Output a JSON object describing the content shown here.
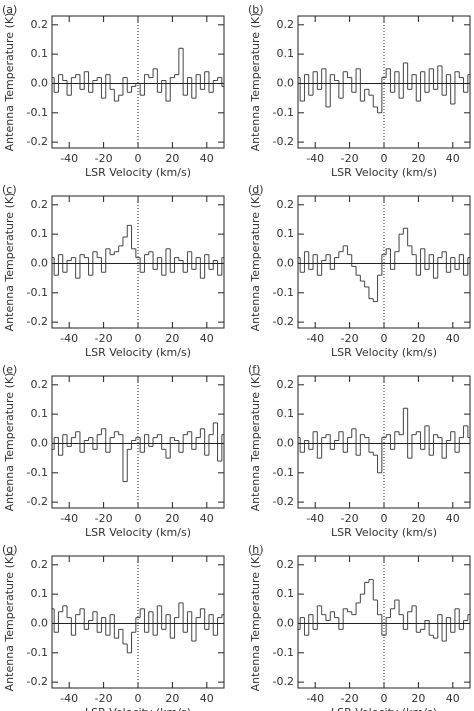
{
  "chart_data": [
    {
      "type": "line",
      "drawstyle": "steps-mid",
      "title": "(a)",
      "x_label": "LSR Velocity (km/s)",
      "y_label": "Antenna Temperature (K)",
      "color": "#444444",
      "xlim": [
        -50,
        50
      ],
      "ylim": [
        -0.22,
        0.23
      ],
      "xticks": [
        -40,
        -20,
        0,
        20,
        40
      ],
      "yticks": [
        -0.2,
        -0.1,
        {
          "value": 0,
          "label": "0.0"
        },
        0.1,
        0.2
      ],
      "x": [
        -50,
        -47.5,
        -45,
        -42.5,
        -40,
        -37.5,
        -35,
        -32.5,
        -30,
        -27.5,
        -25,
        -22.5,
        -20,
        -17.5,
        -15,
        -12.5,
        -10,
        -7.5,
        -5,
        -2.5,
        0,
        2.5,
        5,
        7.5,
        10,
        12.5,
        15,
        17.5,
        20,
        22.5,
        25,
        27.5,
        30,
        32.5,
        35,
        37.5,
        40,
        42.5,
        45,
        47.5,
        50
      ],
      "values": [
        0.02,
        -0.03,
        0.03,
        0.01,
        -0.04,
        0.02,
        0.03,
        -0.02,
        0.04,
        -0.03,
        0.01,
        0.02,
        -0.05,
        0.03,
        -0.02,
        -0.06,
        -0.04,
        0.02,
        -0.03,
        -0.01,
        0.0,
        -0.04,
        0.03,
        0.02,
        0.05,
        -0.03,
        0.01,
        -0.06,
        0.02,
        0.03,
        0.12,
        -0.04,
        0.02,
        -0.05,
        0.03,
        -0.02,
        0.04,
        -0.03,
        0.01,
        0.02,
        -0.01
      ]
    },
    {
      "type": "line",
      "drawstyle": "steps-mid",
      "title": "(b)",
      "x_label": "LSR Velocity (km/s)",
      "y_label": "Antenna Temperature (K)",
      "color": "#444444",
      "xlim": [
        -50,
        50
      ],
      "ylim": [
        -0.22,
        0.23
      ],
      "xticks": [
        -40,
        -20,
        0,
        20,
        40
      ],
      "yticks": [
        -0.2,
        -0.1,
        {
          "value": 0,
          "label": "0.0"
        },
        0.1,
        0.2
      ],
      "x": [
        -50,
        -47.5,
        -45,
        -42.5,
        -40,
        -37.5,
        -35,
        -32.5,
        -30,
        -27.5,
        -25,
        -22.5,
        -20,
        -17.5,
        -15,
        -12.5,
        -10,
        -7.5,
        -5,
        -2.5,
        0,
        2.5,
        5,
        7.5,
        10,
        12.5,
        15,
        17.5,
        20,
        22.5,
        25,
        27.5,
        30,
        32.5,
        35,
        37.5,
        40,
        42.5,
        45,
        47.5,
        50
      ],
      "values": [
        0.02,
        -0.06,
        0.03,
        -0.04,
        0.04,
        -0.02,
        0.05,
        -0.08,
        0.03,
        0.01,
        -0.05,
        0.04,
        0.02,
        -0.03,
        0.05,
        -0.06,
        -0.02,
        -0.04,
        -0.08,
        -0.1,
        0.02,
        0.05,
        -0.03,
        0.04,
        -0.05,
        0.07,
        -0.02,
        0.03,
        -0.06,
        0.04,
        -0.03,
        0.05,
        -0.02,
        0.06,
        -0.04,
        0.03,
        -0.07,
        0.04,
        0.02,
        -0.03,
        0.03
      ]
    },
    {
      "type": "line",
      "drawstyle": "steps-mid",
      "title": "(c)",
      "x_label": "LSR Velocity (km/s)",
      "y_label": "Antenna Temperature (K)",
      "color": "#444444",
      "xlim": [
        -50,
        50
      ],
      "ylim": [
        -0.22,
        0.23
      ],
      "xticks": [
        -40,
        -20,
        0,
        20,
        40
      ],
      "yticks": [
        -0.2,
        -0.1,
        {
          "value": 0,
          "label": "0.0"
        },
        0.1,
        0.2
      ],
      "x": [
        -50,
        -47.5,
        -45,
        -42.5,
        -40,
        -37.5,
        -35,
        -32.5,
        -30,
        -27.5,
        -25,
        -22.5,
        -20,
        -17.5,
        -15,
        -12.5,
        -10,
        -7.5,
        -5,
        -2.5,
        0,
        2.5,
        5,
        7.5,
        10,
        12.5,
        15,
        17.5,
        20,
        22.5,
        25,
        27.5,
        30,
        32.5,
        35,
        37.5,
        40,
        42.5,
        45,
        47.5,
        50
      ],
      "values": [
        0.02,
        -0.04,
        0.03,
        -0.03,
        0.01,
        0.02,
        -0.05,
        0.03,
        0.02,
        -0.04,
        0.04,
        0.02,
        -0.03,
        0.05,
        0.03,
        0.04,
        0.06,
        0.09,
        0.13,
        0.05,
        0.02,
        -0.03,
        0.03,
        0.04,
        -0.02,
        0.02,
        -0.04,
        0.05,
        -0.03,
        0.02,
        0.01,
        -0.03,
        0.04,
        -0.02,
        0.02,
        -0.05,
        0.03,
        -0.02,
        0.01,
        -0.04,
        0.02
      ]
    },
    {
      "type": "line",
      "drawstyle": "steps-mid",
      "title": "(d)",
      "x_label": "LSR Velocity (km/s)",
      "y_label": "Antenna Temperature (K)",
      "color": "#444444",
      "xlim": [
        -50,
        50
      ],
      "ylim": [
        -0.22,
        0.23
      ],
      "xticks": [
        -40,
        -20,
        0,
        20,
        40
      ],
      "yticks": [
        -0.2,
        -0.1,
        {
          "value": 0,
          "label": "0.0"
        },
        0.1,
        0.2
      ],
      "x": [
        -50,
        -47.5,
        -45,
        -42.5,
        -40,
        -37.5,
        -35,
        -32.5,
        -30,
        -27.5,
        -25,
        -22.5,
        -20,
        -17.5,
        -15,
        -12.5,
        -10,
        -7.5,
        -5,
        -2.5,
        0,
        2.5,
        5,
        7.5,
        10,
        12.5,
        15,
        17.5,
        20,
        22.5,
        25,
        27.5,
        30,
        32.5,
        35,
        37.5,
        40,
        42.5,
        45,
        47.5,
        50
      ],
      "values": [
        0.02,
        -0.03,
        0.04,
        -0.02,
        0.03,
        -0.04,
        0.01,
        0.03,
        -0.02,
        0.02,
        0.04,
        0.06,
        0.03,
        -0.01,
        -0.04,
        -0.06,
        -0.08,
        -0.12,
        -0.13,
        -0.04,
        0.03,
        0.05,
        -0.02,
        0.04,
        0.1,
        0.12,
        0.06,
        0.03,
        -0.04,
        0.05,
        -0.02,
        0.03,
        -0.05,
        0.02,
        0.04,
        -0.03,
        0.02,
        -0.02,
        0.03,
        -0.04,
        0.02
      ]
    },
    {
      "type": "line",
      "drawstyle": "steps-mid",
      "title": "(e)",
      "x_label": "LSR Velocity (km/s)",
      "y_label": "Antenna Temperature (K)",
      "color": "#444444",
      "xlim": [
        -50,
        50
      ],
      "ylim": [
        -0.22,
        0.23
      ],
      "xticks": [
        -40,
        -20,
        0,
        20,
        40
      ],
      "yticks": [
        -0.2,
        -0.1,
        {
          "value": 0,
          "label": "0.0"
        },
        0.1,
        0.2
      ],
      "x": [
        -50,
        -47.5,
        -45,
        -42.5,
        -40,
        -37.5,
        -35,
        -32.5,
        -30,
        -27.5,
        -25,
        -22.5,
        -20,
        -17.5,
        -15,
        -12.5,
        -10,
        -7.5,
        -5,
        -2.5,
        0,
        2.5,
        5,
        7.5,
        10,
        12.5,
        15,
        17.5,
        20,
        22.5,
        25,
        27.5,
        30,
        32.5,
        35,
        37.5,
        40,
        42.5,
        45,
        47.5,
        50
      ],
      "values": [
        -0.02,
        0.02,
        -0.04,
        0.03,
        -0.01,
        0.02,
        0.04,
        -0.03,
        0.01,
        0.02,
        -0.02,
        0.03,
        0.05,
        -0.03,
        0.02,
        0.04,
        0.03,
        -0.13,
        -0.02,
        0.01,
        0.02,
        -0.03,
        0.03,
        -0.01,
        0.02,
        0.03,
        -0.02,
        -0.05,
        0.02,
        0.01,
        -0.03,
        0.03,
        0.04,
        -0.02,
        0.02,
        0.05,
        -0.04,
        0.03,
        0.07,
        -0.06,
        0.03
      ]
    },
    {
      "type": "line",
      "drawstyle": "steps-mid",
      "title": "(f)",
      "x_label": "LSR Velocity (km/s)",
      "y_label": "Antenna Temperature (K)",
      "color": "#444444",
      "xlim": [
        -50,
        50
      ],
      "ylim": [
        -0.22,
        0.23
      ],
      "xticks": [
        -40,
        -20,
        0,
        20,
        40
      ],
      "yticks": [
        -0.2,
        -0.1,
        {
          "value": 0,
          "label": "0.0"
        },
        0.1,
        0.2
      ],
      "x": [
        -50,
        -47.5,
        -45,
        -42.5,
        -40,
        -37.5,
        -35,
        -32.5,
        -30,
        -27.5,
        -25,
        -22.5,
        -20,
        -17.5,
        -15,
        -12.5,
        -10,
        -7.5,
        -5,
        -2.5,
        0,
        2.5,
        5,
        7.5,
        10,
        12.5,
        15,
        17.5,
        20,
        22.5,
        25,
        27.5,
        30,
        32.5,
        35,
        37.5,
        40,
        42.5,
        45,
        47.5,
        50
      ],
      "values": [
        0.02,
        -0.03,
        0.01,
        -0.02,
        0.04,
        -0.05,
        0.02,
        0.03,
        -0.02,
        0.01,
        0.04,
        -0.03,
        0.02,
        0.05,
        -0.04,
        0.03,
        0.02,
        -0.03,
        -0.04,
        -0.1,
        0.02,
        0.03,
        -0.02,
        0.04,
        0.03,
        0.12,
        -0.05,
        0.03,
        0.04,
        -0.02,
        0.06,
        -0.04,
        0.03,
        0.02,
        -0.05,
        0.01,
        0.04,
        -0.03,
        0.02,
        0.06,
        0.02
      ]
    },
    {
      "type": "line",
      "drawstyle": "steps-mid",
      "title": "(g)",
      "x_label": "LSR Velocity (km/s)",
      "y_label": "Antenna Temperature (K)",
      "color": "#444444",
      "xlim": [
        -50,
        50
      ],
      "ylim": [
        -0.22,
        0.23
      ],
      "xticks": [
        -40,
        -20,
        0,
        20,
        40
      ],
      "yticks": [
        -0.2,
        -0.1,
        {
          "value": 0,
          "label": "0.0"
        },
        0.1,
        0.2
      ],
      "x": [
        -50,
        -47.5,
        -45,
        -42.5,
        -40,
        -37.5,
        -35,
        -32.5,
        -30,
        -27.5,
        -25,
        -22.5,
        -20,
        -17.5,
        -15,
        -12.5,
        -10,
        -7.5,
        -5,
        -2.5,
        0,
        2.5,
        5,
        7.5,
        10,
        12.5,
        15,
        17.5,
        20,
        22.5,
        25,
        27.5,
        30,
        32.5,
        35,
        37.5,
        40,
        42.5,
        45,
        47.5,
        50
      ],
      "values": [
        0.05,
        -0.03,
        0.04,
        0.06,
        0.02,
        -0.04,
        0.03,
        0.05,
        -0.02,
        0.01,
        0.04,
        -0.03,
        0.02,
        -0.04,
        0.03,
        -0.05,
        -0.02,
        -0.07,
        -0.1,
        -0.03,
        0.02,
        0.05,
        -0.03,
        0.04,
        -0.04,
        0.06,
        -0.02,
        0.03,
        -0.05,
        0.02,
        0.07,
        -0.03,
        0.04,
        -0.06,
        0.02,
        0.05,
        -0.02,
        0.03,
        -0.04,
        0.02,
        0.03
      ]
    },
    {
      "type": "line",
      "drawstyle": "steps-mid",
      "title": "(h)",
      "x_label": "LSR Velocity (km/s)",
      "y_label": "Antenna Temperature (K)",
      "color": "#444444",
      "xlim": [
        -50,
        50
      ],
      "ylim": [
        -0.22,
        0.23
      ],
      "xticks": [
        -40,
        -20,
        0,
        20,
        40
      ],
      "yticks": [
        -0.2,
        -0.1,
        {
          "value": 0,
          "label": "0.0"
        },
        0.1,
        0.2
      ],
      "x": [
        -50,
        -47.5,
        -45,
        -42.5,
        -40,
        -37.5,
        -35,
        -32.5,
        -30,
        -27.5,
        -25,
        -22.5,
        -20,
        -17.5,
        -15,
        -12.5,
        -10,
        -7.5,
        -5,
        -2.5,
        0,
        2.5,
        5,
        7.5,
        10,
        12.5,
        15,
        17.5,
        20,
        22.5,
        25,
        27.5,
        30,
        32.5,
        35,
        37.5,
        40,
        42.5,
        45,
        47.5,
        50
      ],
      "values": [
        -0.02,
        0.02,
        -0.04,
        0.03,
        -0.02,
        0.06,
        0.03,
        0.01,
        0.04,
        0.02,
        -0.02,
        0.05,
        0.04,
        0.03,
        0.07,
        0.1,
        0.14,
        0.15,
        0.08,
        0.03,
        -0.04,
        0.02,
        0.05,
        0.08,
        0.03,
        -0.02,
        0.04,
        0.06,
        -0.03,
        -0.02,
        0.01,
        -0.04,
        -0.05,
        0.03,
        -0.06,
        0.02,
        -0.03,
        0.05,
        -0.02,
        0.01,
        0.03
      ]
    }
  ]
}
